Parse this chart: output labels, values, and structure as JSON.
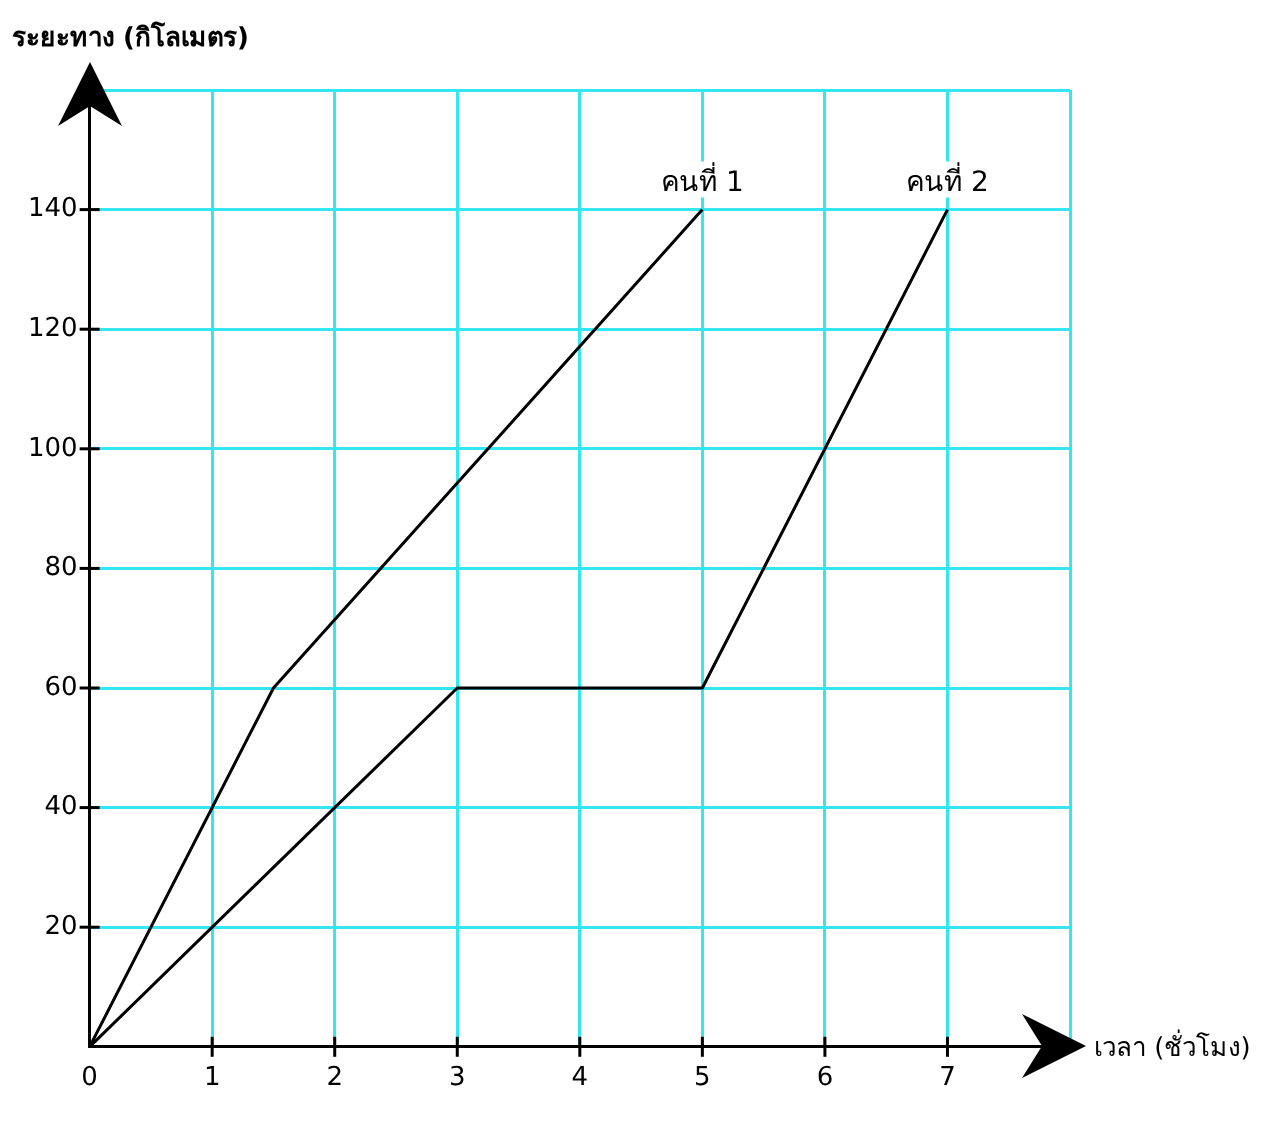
{
  "chart_data": {
    "type": "line",
    "xlabel": "เวลา (ชั่วโมง)",
    "ylabel": "ระยะทาง (กิโลเมตร)",
    "xlim": [
      0,
      8
    ],
    "xticks": [
      {
        "value": 0,
        "label": "0"
      },
      1,
      2,
      3,
      4,
      5,
      6,
      7,
      {
        "value": 8,
        "label": null
      }
    ],
    "ylim": [
      0,
      160
    ],
    "yticks": [
      {
        "value": 0,
        "label": null
      },
      20,
      40,
      60,
      80,
      100,
      120,
      140,
      {
        "value": 160,
        "label": null
      }
    ],
    "grid": true,
    "legend": false,
    "marker": "none",
    "line_style": "solid",
    "series": [
      {
        "name": "คนที่ 1",
        "color": "#000000",
        "x": [
          0,
          1.5,
          5
        ],
        "values": [
          0,
          60,
          140
        ]
      },
      {
        "name": "คนที่ 2",
        "color": "#000000",
        "x": [
          0,
          3,
          5,
          7
        ],
        "values": [
          0,
          60,
          60,
          140
        ]
      }
    ]
  }
}
